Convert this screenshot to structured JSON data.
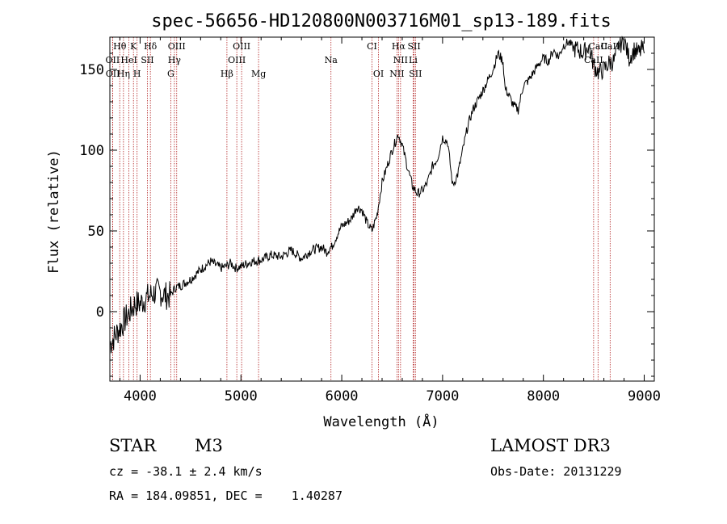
{
  "chart_data": {
    "type": "line",
    "title": "spec-56656-HD120800N003716M01_sp13-189.fits",
    "xlabel": "Wavelength (Å)",
    "ylabel": "Flux (relative)",
    "xlim": [
      3700,
      9100
    ],
    "ylim": [
      -43,
      170
    ],
    "xticks": [
      4000,
      5000,
      6000,
      7000,
      8000,
      9000
    ],
    "yticks": [
      0,
      50,
      100,
      150
    ],
    "grid": false,
    "series": [
      {
        "x": [
          3700,
          3750,
          3800,
          3850,
          3900,
          3950,
          4000,
          4050,
          4100,
          4150,
          4200,
          4250,
          4300,
          4350,
          4400,
          4500,
          4600,
          4700,
          4800,
          4850,
          4900,
          4950,
          5000,
          5100,
          5200,
          5300,
          5400,
          5500,
          5600,
          5700,
          5800,
          5850,
          5890,
          5900,
          5950,
          6000,
          6050,
          6100,
          6150,
          6200,
          6250,
          6300,
          6350,
          6400,
          6450,
          6500,
          6560,
          6600,
          6650,
          6700,
          6750,
          6800,
          6850,
          6900,
          6950,
          7000,
          7050,
          7100,
          7150,
          7200,
          7250,
          7300,
          7400,
          7500,
          7550,
          7600,
          7620,
          7650,
          7700,
          7750,
          7800,
          7850,
          7900,
          7950,
          8000,
          8050,
          8100,
          8150,
          8200,
          8250,
          8300,
          8350,
          8400,
          8450,
          8500,
          8550,
          8600,
          8650,
          8700,
          8750,
          8800,
          8850,
          8900,
          8950,
          8980,
          9000
        ],
        "y": [
          -20,
          -15,
          -10,
          -5,
          0,
          5,
          5,
          8,
          10,
          12,
          12,
          10,
          10,
          15,
          16,
          20,
          26,
          31,
          27,
          28,
          30,
          27,
          28,
          31,
          32,
          35,
          34,
          38,
          33,
          38,
          40,
          37,
          40,
          40,
          47,
          53,
          55,
          58,
          65,
          63,
          55,
          50,
          60,
          80,
          90,
          100,
          110,
          103,
          90,
          78,
          73,
          75,
          80,
          90,
          95,
          108,
          105,
          78,
          85,
          100,
          115,
          125,
          137,
          150,
          160,
          155,
          138,
          135,
          128,
          125,
          140,
          143,
          148,
          153,
          157,
          155,
          162,
          158,
          165,
          167,
          163,
          162,
          160,
          165,
          152,
          148,
          150,
          154,
          155,
          165,
          168,
          157,
          162,
          160,
          163,
          160
        ]
      }
    ],
    "lines": [
      {
        "label": "Hθ",
        "x": 3798
      },
      {
        "label": "K",
        "x": 3934
      },
      {
        "label": "Hδ",
        "x": 4102
      },
      {
        "label": "OIII",
        "x": 4363
      },
      {
        "label": "OIII",
        "x": 5007
      },
      {
        "label": "CI",
        "x": 6300
      },
      {
        "label": "Hα",
        "x": 6563
      },
      {
        "label": "SII",
        "x": 6717
      },
      {
        "label": "CaII",
        "x": 8542
      },
      {
        "label": "OII",
        "x": 3727
      },
      {
        "label": "HeI",
        "x": 3889
      },
      {
        "label": "SII",
        "x": 4072
      },
      {
        "label": "Hγ",
        "x": 4340
      },
      {
        "label": "OIII",
        "x": 4959
      },
      {
        "label": "Na",
        "x": 5893
      },
      {
        "label": "NII",
        "x": 6583
      },
      {
        "label": "Li",
        "x": 6708
      },
      {
        "label": "CaII",
        "x": 8498
      },
      {
        "label": "OII",
        "x": 3729
      },
      {
        "label": "Hη",
        "x": 3835
      },
      {
        "label": "H",
        "x": 3970
      },
      {
        "label": "G",
        "x": 4304
      },
      {
        "label": "Hβ",
        "x": 4861
      },
      {
        "label": "Mg",
        "x": 5175
      },
      {
        "label": "OI",
        "x": 6364
      },
      {
        "label": "NII",
        "x": 6548
      },
      {
        "label": "SII",
        "x": 6731
      },
      {
        "label": "CaII",
        "x": 8662
      }
    ]
  },
  "info": {
    "star": "STAR",
    "subclass": "M3",
    "survey": "LAMOST DR3",
    "cz": "cz = -38.1 ± 2.4 km/s",
    "obs_date": "Obs-Date: 20131229",
    "coords": "RA = 184.09851, DEC =    1.40287"
  },
  "colors": {
    "line_marker": "#b22222",
    "spectrum": "#000000"
  }
}
